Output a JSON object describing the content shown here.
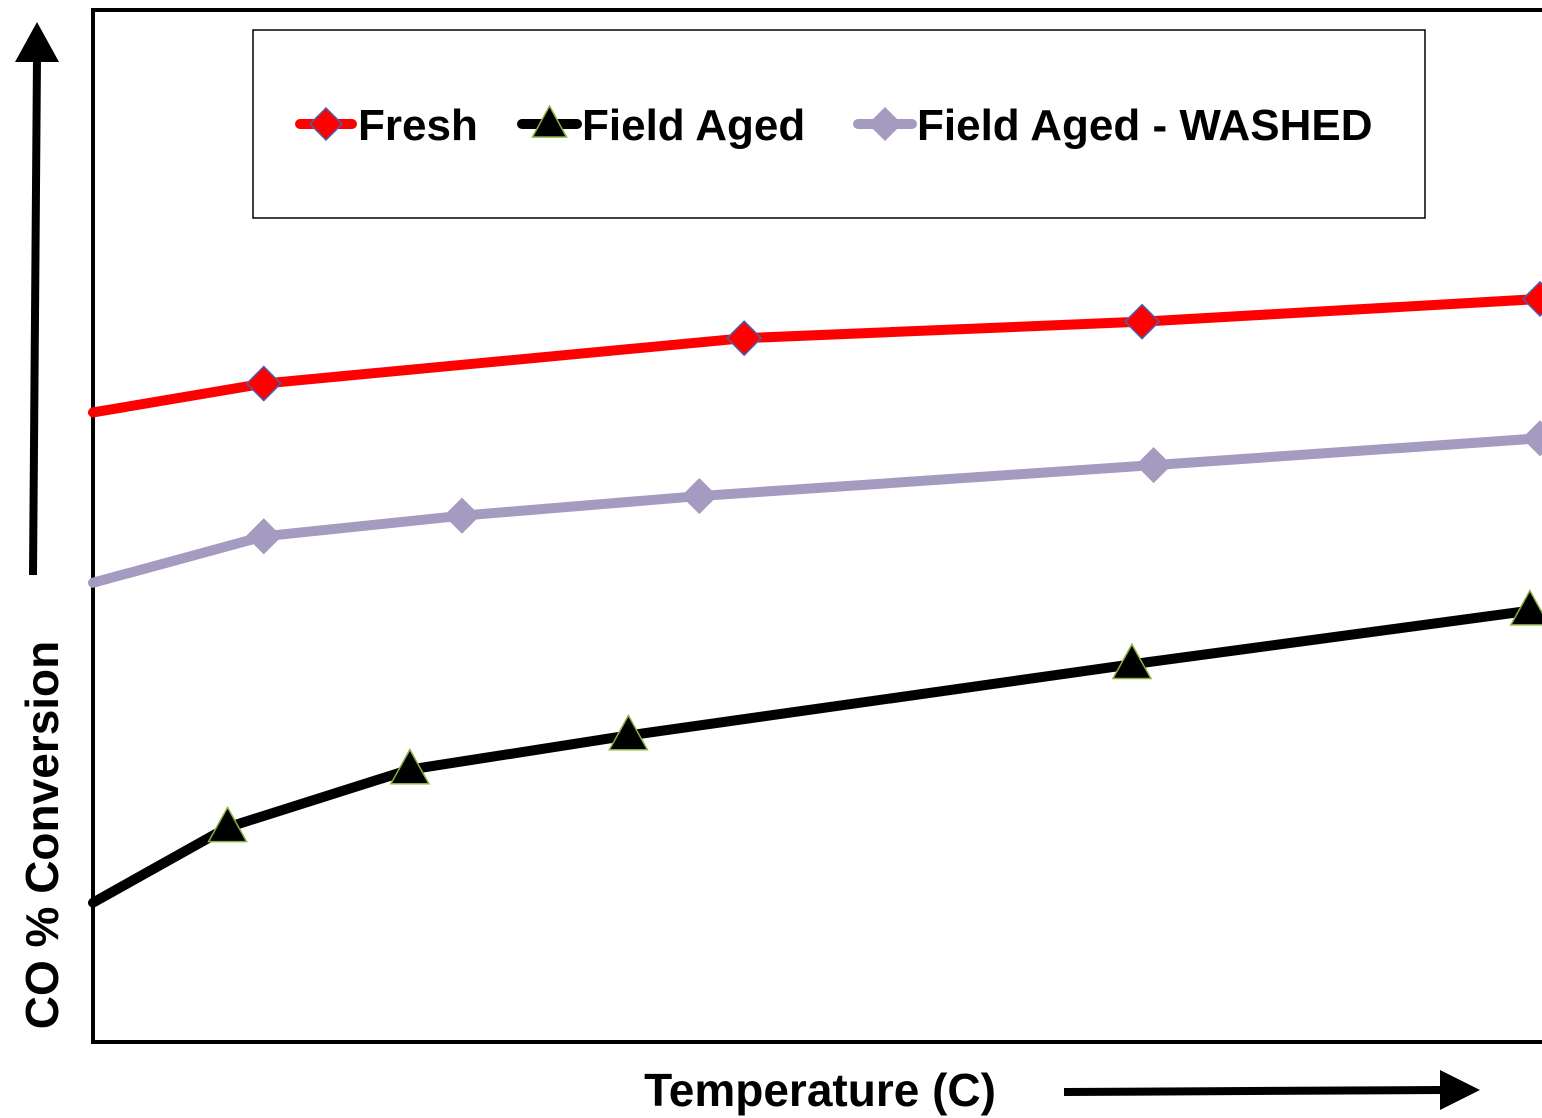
{
  "chart_data": {
    "type": "line",
    "title": "",
    "xlabel": "Temperature (C)",
    "ylabel": "CO % Conversion",
    "x_ticks_shown": false,
    "y_ticks_shown": false,
    "grid": false,
    "legend_position": "top",
    "series": [
      {
        "name": "Fresh",
        "color": "#ff0000",
        "marker": "diamond",
        "marker_fill": "#ff0000",
        "marker_edge": "#4a5fb0",
        "x": [
          0.0,
          0.118,
          0.45,
          0.725,
          1.0
        ],
        "y": [
          0.61,
          0.638,
          0.682,
          0.698,
          0.72
        ]
      },
      {
        "name": "Field Aged",
        "color": "#000000",
        "marker": "triangle",
        "marker_fill": "#000000",
        "marker_edge": "#8ab040",
        "x": [
          0.0,
          0.093,
          0.219,
          0.37,
          0.718,
          0.993
        ],
        "y": [
          0.135,
          0.208,
          0.264,
          0.297,
          0.366,
          0.418
        ]
      },
      {
        "name": "Field Aged - WASHED",
        "color": "#a59abf",
        "marker": "diamond",
        "marker_fill": "#a59abf",
        "marker_edge": "#a59abf",
        "x": [
          0.0,
          0.118,
          0.255,
          0.419,
          0.733,
          1.0
        ],
        "y": [
          0.445,
          0.49,
          0.51,
          0.529,
          0.559,
          0.585
        ]
      }
    ]
  }
}
